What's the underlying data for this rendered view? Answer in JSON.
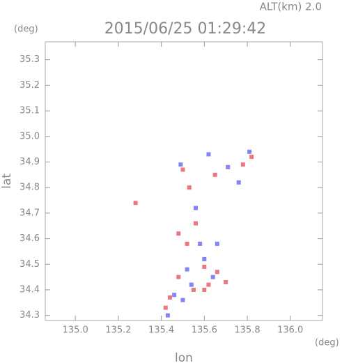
{
  "chart_data": {
    "type": "scatter",
    "title": "2015/06/25 01:29:42",
    "annotation": "ALT(km) 2.0",
    "x_unit": "(deg)",
    "y_unit": "(deg)",
    "xlabel": "lon",
    "ylabel": "lat",
    "xlim": [
      134.86,
      136.15
    ],
    "ylim": [
      34.28,
      35.37
    ],
    "xticks": [
      {
        "value": 135,
        "label": "135.0"
      },
      135.2,
      135.4,
      135.6,
      135.8,
      {
        "value": 136,
        "label": "136.0"
      }
    ],
    "yticks": [
      34.3,
      34.4,
      34.5,
      34.6,
      34.7,
      34.8,
      34.9,
      {
        "value": 35,
        "label": "35.0"
      },
      35.1,
      35.2,
      35.3
    ],
    "series": [
      {
        "color": "#e8606a",
        "x": [
          135.48,
          135.52,
          135.6,
          135.66,
          135.7,
          135.55,
          135.44,
          135.6,
          135.78,
          135.82,
          135.65,
          135.5,
          135.56,
          135.62,
          135.48,
          135.28,
          135.53,
          135.42
        ],
        "values": [
          34.62,
          34.58,
          34.49,
          34.47,
          34.43,
          34.4,
          34.37,
          34.4,
          34.89,
          34.92,
          34.85,
          34.87,
          34.66,
          34.42,
          34.45,
          34.74,
          34.8,
          34.33
        ]
      },
      {
        "color": "#6f6ff0",
        "x": [
          135.58,
          135.54,
          135.46,
          135.6,
          135.71,
          135.76,
          135.49,
          135.62,
          135.64,
          135.52,
          135.66,
          135.5,
          135.56,
          135.81,
          135.43
        ],
        "values": [
          34.58,
          34.42,
          34.38,
          34.52,
          34.88,
          34.82,
          34.89,
          34.93,
          34.45,
          34.48,
          34.58,
          34.36,
          34.72,
          34.94,
          34.3
        ]
      }
    ]
  }
}
